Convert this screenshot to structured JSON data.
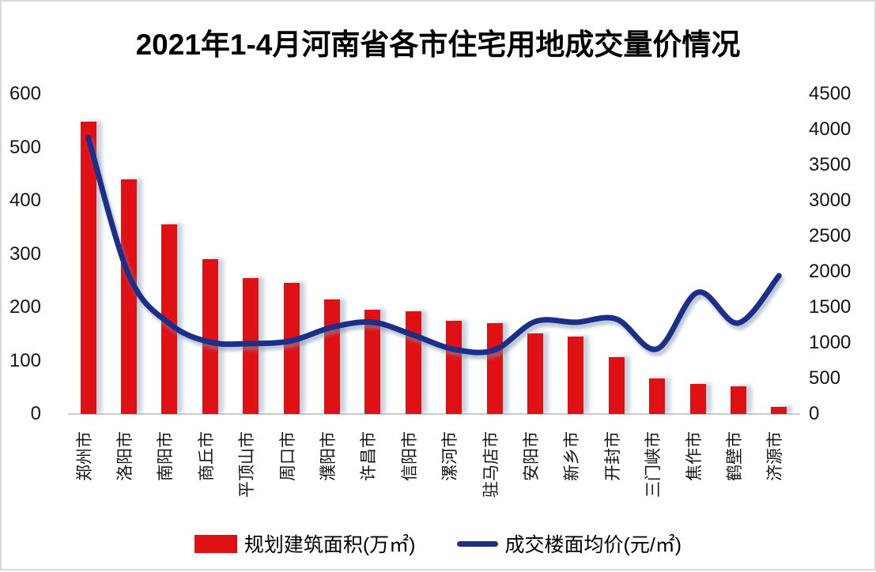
{
  "title": "2021年1-4月河南省各市住宅用地成交量价情况",
  "legend": {
    "bar_label": "规划建筑面积(万㎡)",
    "line_label": "成交楼面均价(元/㎡)"
  },
  "colors": {
    "bar": "#E01114",
    "line": "#1B2E8A",
    "axis_line": "#C6CCD2",
    "text": "#151515",
    "background": "#FFFFFF"
  },
  "chart_data": {
    "type": "bar+line",
    "title": "2021年1-4月河南省各市住宅用地成交量价情况",
    "categories": [
      "郑州市",
      "洛阳市",
      "南阳市",
      "商丘市",
      "平顶山市",
      "周口市",
      "濮阳市",
      "许昌市",
      "信阳市",
      "漯河市",
      "驻马店市",
      "安阳市",
      "新乡市",
      "开封市",
      "三门峡市",
      "焦作市",
      "鹤壁市",
      "济源市"
    ],
    "series": [
      {
        "name": "规划建筑面积(万㎡)",
        "type": "bar",
        "axis": "left",
        "color": "#E01114",
        "values": [
          548,
          440,
          355,
          290,
          255,
          246,
          215,
          196,
          193,
          175,
          171,
          151,
          145,
          107,
          67,
          56,
          52,
          13
        ]
      },
      {
        "name": "成交楼面均价(元/㎡)",
        "type": "line",
        "axis": "right",
        "color": "#1B2E8A",
        "values": [
          3885,
          1950,
          1270,
          1010,
          990,
          1030,
          1220,
          1290,
          1110,
          910,
          900,
          1300,
          1290,
          1335,
          915,
          1710,
          1280,
          1945
        ]
      }
    ],
    "left_axis": {
      "min": 0,
      "max": 600,
      "step": 100,
      "ticks": [
        600,
        500,
        400,
        300,
        200,
        100,
        0
      ]
    },
    "right_axis": {
      "min": 0,
      "max": 4500,
      "step": 500,
      "ticks": [
        4500,
        4000,
        3500,
        3000,
        2500,
        2000,
        1500,
        1000,
        500,
        0
      ]
    },
    "grid": false,
    "legend_position": "bottom"
  }
}
